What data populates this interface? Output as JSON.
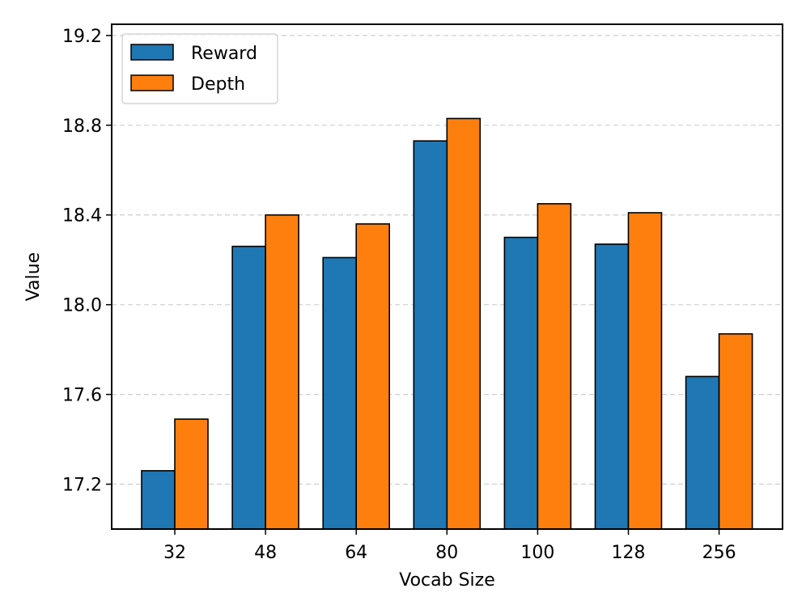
{
  "chart_data": {
    "type": "bar",
    "title": "",
    "xlabel": "Vocab Size",
    "ylabel": "Value",
    "categories": [
      "32",
      "48",
      "64",
      "80",
      "100",
      "128",
      "256"
    ],
    "series": [
      {
        "name": "Reward",
        "color": "#1f77b4",
        "values": [
          17.26,
          18.26,
          18.21,
          18.73,
          18.3,
          18.27,
          17.68
        ]
      },
      {
        "name": "Depth",
        "color": "#ff7f0e",
        "values": [
          17.49,
          18.4,
          18.36,
          18.83,
          18.45,
          18.41,
          17.87
        ]
      }
    ],
    "ylim": [
      17.0,
      19.25
    ],
    "yticks": [
      "17.2",
      "17.6",
      "18.0",
      "18.4",
      "18.8",
      "19.2"
    ],
    "grid": "y-dashed",
    "legend_position": "upper-left",
    "bar_edge_color": "#000000"
  }
}
